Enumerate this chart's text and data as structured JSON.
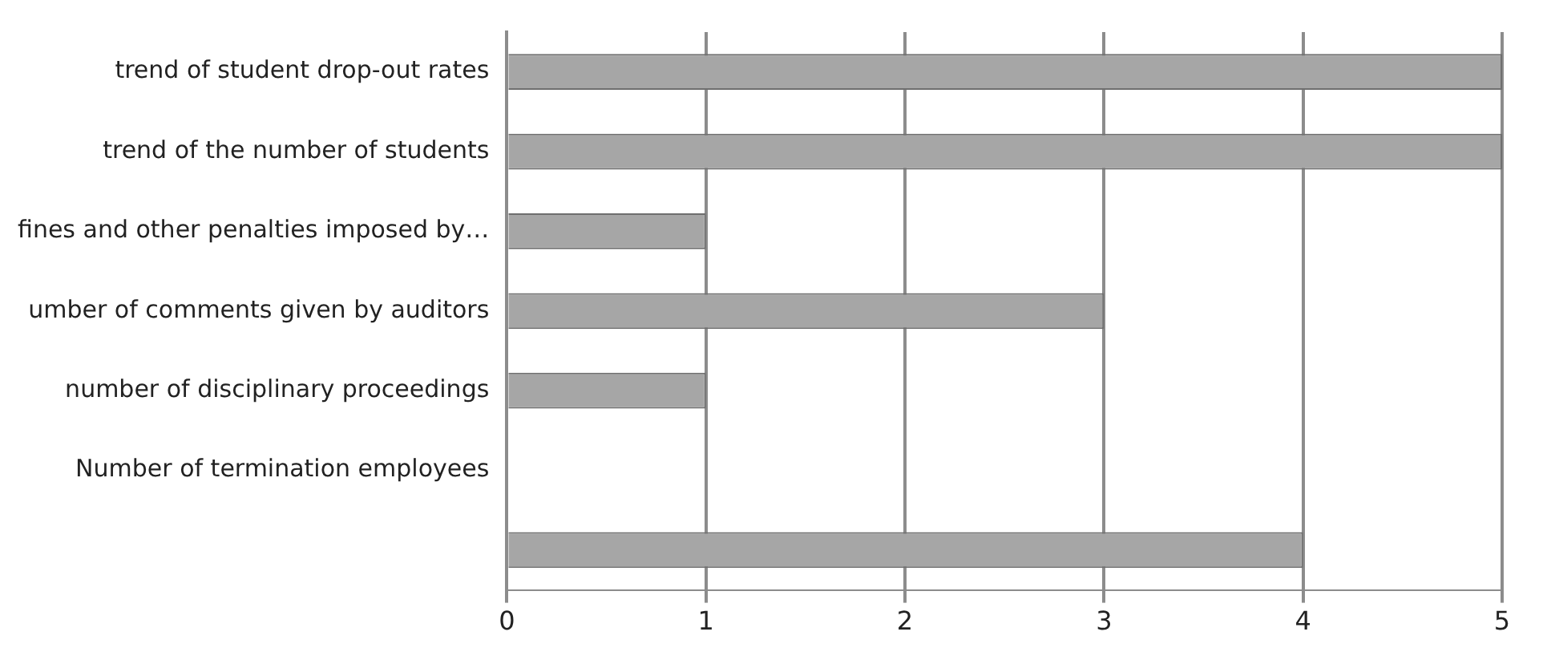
{
  "chart_data": {
    "type": "bar",
    "orientation": "horizontal",
    "categories": [
      "trend of student drop-out rates",
      "trend of the number of students",
      "fines and other penalties imposed by…",
      "umber of comments given by auditors",
      "number of disciplinary proceedings",
      "Number of termination employees",
      null
    ],
    "values": [
      5,
      5,
      1,
      3,
      1,
      0,
      4
    ],
    "color": "#a6a6a6",
    "xlim": [
      0,
      5
    ],
    "xticks": [
      0,
      1,
      2,
      3,
      4,
      5
    ],
    "grid": "x",
    "legend": false
  }
}
